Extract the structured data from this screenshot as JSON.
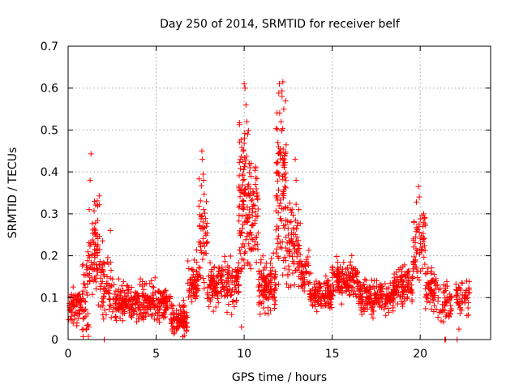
{
  "chart_data": {
    "type": "scatter",
    "title": "Day 250 of 2014, SRMTID for receiver belf",
    "xlabel": "GPS time / hours",
    "ylabel": "SRMTID / TECUs",
    "xlim": [
      0,
      24
    ],
    "ylim": [
      0,
      0.7
    ],
    "xticks": [
      0,
      5,
      10,
      15,
      20
    ],
    "yticks": [
      0,
      0.1,
      0.2,
      0.3,
      0.4,
      0.5,
      0.6,
      0.7
    ],
    "grid": true,
    "marker": "+",
    "color": "#ff0000",
    "series": [
      {
        "name": "SRMTID",
        "segments": [
          {
            "x0": 0.0,
            "x1": 0.8,
            "base": 0.08,
            "spread": 0.05,
            "n": 70
          },
          {
            "x0": 0.8,
            "x1": 1.2,
            "base": 0.12,
            "spread": 0.12,
            "n": 40
          },
          {
            "x0": 1.2,
            "x1": 1.8,
            "base": 0.22,
            "spread": 0.12,
            "n": 70
          },
          {
            "x0": 1.8,
            "x1": 2.5,
            "base": 0.13,
            "spread": 0.09,
            "n": 60
          },
          {
            "x0": 2.5,
            "x1": 5.0,
            "base": 0.09,
            "spread": 0.05,
            "n": 230
          },
          {
            "x0": 5.0,
            "x1": 5.8,
            "base": 0.09,
            "spread": 0.04,
            "n": 70
          },
          {
            "x0": 5.8,
            "x1": 6.8,
            "base": 0.05,
            "spread": 0.04,
            "n": 90
          },
          {
            "x0": 6.8,
            "x1": 7.4,
            "base": 0.14,
            "spread": 0.06,
            "n": 60
          },
          {
            "x0": 7.4,
            "x1": 7.9,
            "base": 0.25,
            "spread": 0.15,
            "n": 50
          },
          {
            "x0": 7.9,
            "x1": 9.7,
            "base": 0.13,
            "spread": 0.06,
            "n": 160
          },
          {
            "x0": 9.7,
            "x1": 10.3,
            "base": 0.32,
            "spread": 0.2,
            "n": 100
          },
          {
            "x0": 10.3,
            "x1": 10.8,
            "base": 0.3,
            "spread": 0.13,
            "n": 60
          },
          {
            "x0": 10.8,
            "x1": 11.8,
            "base": 0.13,
            "spread": 0.07,
            "n": 110
          },
          {
            "x0": 11.8,
            "x1": 12.4,
            "base": 0.35,
            "spread": 0.22,
            "n": 100
          },
          {
            "x0": 12.4,
            "x1": 13.2,
            "base": 0.22,
            "spread": 0.11,
            "n": 80
          },
          {
            "x0": 13.2,
            "x1": 13.7,
            "base": 0.17,
            "spread": 0.05,
            "n": 40
          },
          {
            "x0": 13.7,
            "x1": 15.0,
            "base": 0.11,
            "spread": 0.04,
            "n": 120
          },
          {
            "x0": 15.0,
            "x1": 16.5,
            "base": 0.14,
            "spread": 0.05,
            "n": 140
          },
          {
            "x0": 16.5,
            "x1": 18.5,
            "base": 0.1,
            "spread": 0.04,
            "n": 180
          },
          {
            "x0": 18.5,
            "x1": 19.6,
            "base": 0.13,
            "spread": 0.05,
            "n": 100
          },
          {
            "x0": 19.6,
            "x1": 20.3,
            "base": 0.22,
            "spread": 0.1,
            "n": 60
          },
          {
            "x0": 20.3,
            "x1": 21.0,
            "base": 0.12,
            "spread": 0.05,
            "n": 60
          },
          {
            "x0": 21.0,
            "x1": 21.8,
            "base": 0.09,
            "spread": 0.05,
            "n": 50
          },
          {
            "x0": 22.0,
            "x1": 22.8,
            "base": 0.1,
            "spread": 0.05,
            "n": 50
          }
        ],
        "peaks": [
          {
            "x": 1.3,
            "y": 0.443
          },
          {
            "x": 1.25,
            "y": 0.38
          },
          {
            "x": 1.2,
            "y": 0.31
          },
          {
            "x": 1.5,
            "y": 0.33
          },
          {
            "x": 2.4,
            "y": 0.26
          },
          {
            "x": 7.6,
            "y": 0.45
          },
          {
            "x": 7.62,
            "y": 0.43
          },
          {
            "x": 7.7,
            "y": 0.38
          },
          {
            "x": 7.7,
            "y": 0.31
          },
          {
            "x": 10.0,
            "y": 0.61
          },
          {
            "x": 10.05,
            "y": 0.6
          },
          {
            "x": 10.1,
            "y": 0.56
          },
          {
            "x": 10.15,
            "y": 0.52
          },
          {
            "x": 10.2,
            "y": 0.49
          },
          {
            "x": 9.95,
            "y": 0.45
          },
          {
            "x": 10.3,
            "y": 0.42
          },
          {
            "x": 10.4,
            "y": 0.42
          },
          {
            "x": 12.0,
            "y": 0.61
          },
          {
            "x": 12.2,
            "y": 0.615
          },
          {
            "x": 12.15,
            "y": 0.58
          },
          {
            "x": 12.25,
            "y": 0.55
          },
          {
            "x": 12.1,
            "y": 0.52
          },
          {
            "x": 11.95,
            "y": 0.46
          },
          {
            "x": 12.3,
            "y": 0.44
          },
          {
            "x": 12.9,
            "y": 0.43
          },
          {
            "x": 12.95,
            "y": 0.38
          },
          {
            "x": 13.1,
            "y": 0.31
          },
          {
            "x": 19.9,
            "y": 0.365
          },
          {
            "x": 19.95,
            "y": 0.34
          },
          {
            "x": 20.2,
            "y": 0.3
          },
          {
            "x": 20.15,
            "y": 0.27
          },
          {
            "x": 2.05,
            "y": 0.0
          },
          {
            "x": 21.4,
            "y": 0.0
          },
          {
            "x": 21.45,
            "y": 0.0
          },
          {
            "x": 22.1,
            "y": 0.0
          },
          {
            "x": 22.2,
            "y": 0.025
          },
          {
            "x": 6.6,
            "y": 0.01
          },
          {
            "x": 9.85,
            "y": 0.03
          }
        ]
      }
    ]
  }
}
